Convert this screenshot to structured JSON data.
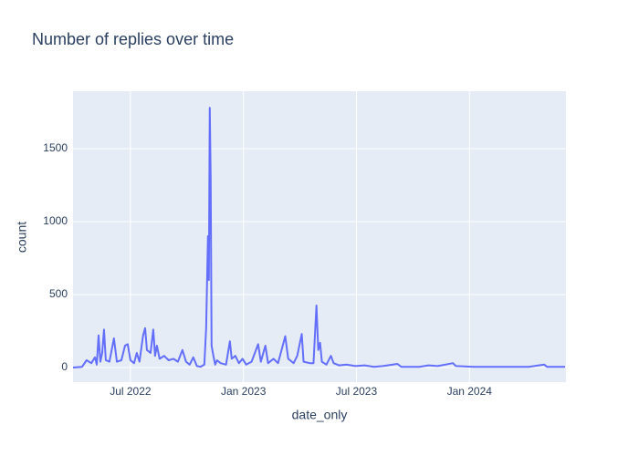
{
  "chart_data": {
    "type": "line",
    "title": "Number of replies over time",
    "x_label": "date_only",
    "y_label": "count",
    "x": [
      2022.246,
      2022.286,
      2022.306,
      2022.327,
      2022.343,
      2022.351,
      2022.359,
      2022.367,
      2022.375,
      2022.383,
      2022.391,
      2022.407,
      2022.427,
      2022.44,
      2022.46,
      2022.476,
      2022.488,
      2022.5,
      2022.516,
      2022.528,
      2022.54,
      2022.556,
      2022.565,
      2022.573,
      2022.589,
      2022.601,
      2022.609,
      2022.617,
      2022.629,
      2022.649,
      2022.669,
      2022.69,
      2022.71,
      2022.73,
      2022.746,
      2022.762,
      2022.778,
      2022.794,
      2022.81,
      2022.827,
      2022.835,
      2022.843,
      2022.847,
      2022.851,
      2022.855,
      2022.859,
      2022.867,
      2022.875,
      2022.883,
      2022.899,
      2022.923,
      2022.94,
      2022.948,
      2022.964,
      2022.98,
      2022.996,
      2023.012,
      2023.036,
      2023.065,
      2023.077,
      2023.097,
      2023.109,
      2023.133,
      2023.153,
      2023.185,
      2023.198,
      2023.222,
      2023.238,
      2023.258,
      2023.266,
      2023.294,
      2023.31,
      2023.323,
      2023.331,
      2023.339,
      2023.347,
      2023.367,
      2023.387,
      2023.399,
      2023.423,
      2023.456,
      2023.496,
      2023.536,
      2023.577,
      2023.617,
      2023.681,
      2023.698,
      2023.778,
      2023.819,
      2023.859,
      2023.927,
      2023.94,
      2024.02,
      2024.101,
      2024.181,
      2024.262,
      2024.331,
      2024.343,
      2024.423
    ],
    "series": [
      {
        "name": "count",
        "color": "#636efa",
        "values": [
          0,
          5,
          50,
          30,
          70,
          20,
          220,
          40,
          100,
          260,
          50,
          40,
          200,
          40,
          50,
          150,
          160,
          50,
          30,
          100,
          40,
          220,
          270,
          120,
          100,
          260,
          80,
          150,
          60,
          80,
          50,
          60,
          40,
          120,
          40,
          20,
          70,
          10,
          5,
          20,
          270,
          900,
          600,
          1780,
          1300,
          150,
          80,
          20,
          50,
          30,
          20,
          180,
          60,
          80,
          30,
          60,
          20,
          40,
          160,
          40,
          150,
          30,
          60,
          30,
          215,
          60,
          30,
          80,
          230,
          40,
          30,
          30,
          425,
          120,
          170,
          40,
          20,
          80,
          30,
          15,
          20,
          10,
          15,
          5,
          10,
          25,
          5,
          5,
          15,
          10,
          30,
          10,
          5,
          5,
          5,
          5,
          20,
          5,
          5
        ]
      }
    ],
    "xlim": [
      2022.246,
      2024.427
    ],
    "xticks": [
      {
        "value": 2022.5,
        "label": "Jul 2022"
      },
      {
        "value": 2023.0,
        "label": "Jan 2023"
      },
      {
        "value": 2023.5,
        "label": "Jul 2023"
      },
      {
        "value": 2024.0,
        "label": "Jan 2024"
      }
    ],
    "ylim": [
      -100,
      1894
    ],
    "yticks": [
      0,
      500,
      1000,
      1500
    ],
    "grid": true
  }
}
